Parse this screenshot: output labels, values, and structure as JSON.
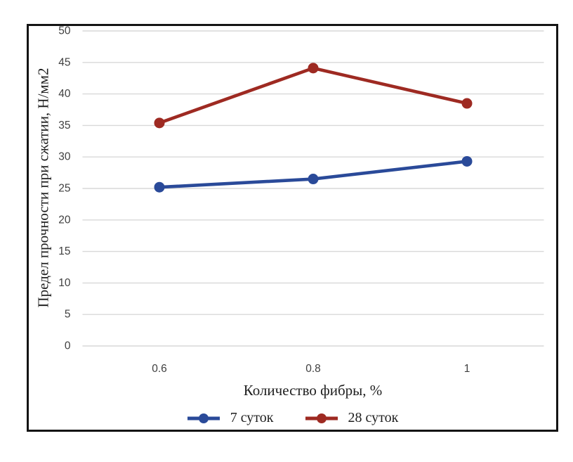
{
  "chart_data": {
    "type": "line",
    "title": "",
    "categories": [
      "0.6",
      "0.8",
      "1"
    ],
    "series": [
      {
        "name": "7 суток",
        "values": [
          25.2,
          26.5,
          29.3
        ],
        "color": "#2a4a99"
      },
      {
        "name": "28 суток",
        "values": [
          35.4,
          44.1,
          38.5
        ],
        "color": "#9e2a22"
      }
    ],
    "xlabel": "Количество фибры, %",
    "ylabel": "Предел прочности при сжатии, Н/мм2",
    "ylim": [
      0,
      50
    ],
    "yticks": [
      0,
      5,
      10,
      15,
      20,
      25,
      30,
      35,
      40,
      45,
      50
    ],
    "grid": "horizontal",
    "gridline_color": "#d8d8d8",
    "tick_label_color": "#3f3f3f",
    "frame_border_color": "#141414",
    "legend_position": "bottom",
    "marker": "circle"
  }
}
